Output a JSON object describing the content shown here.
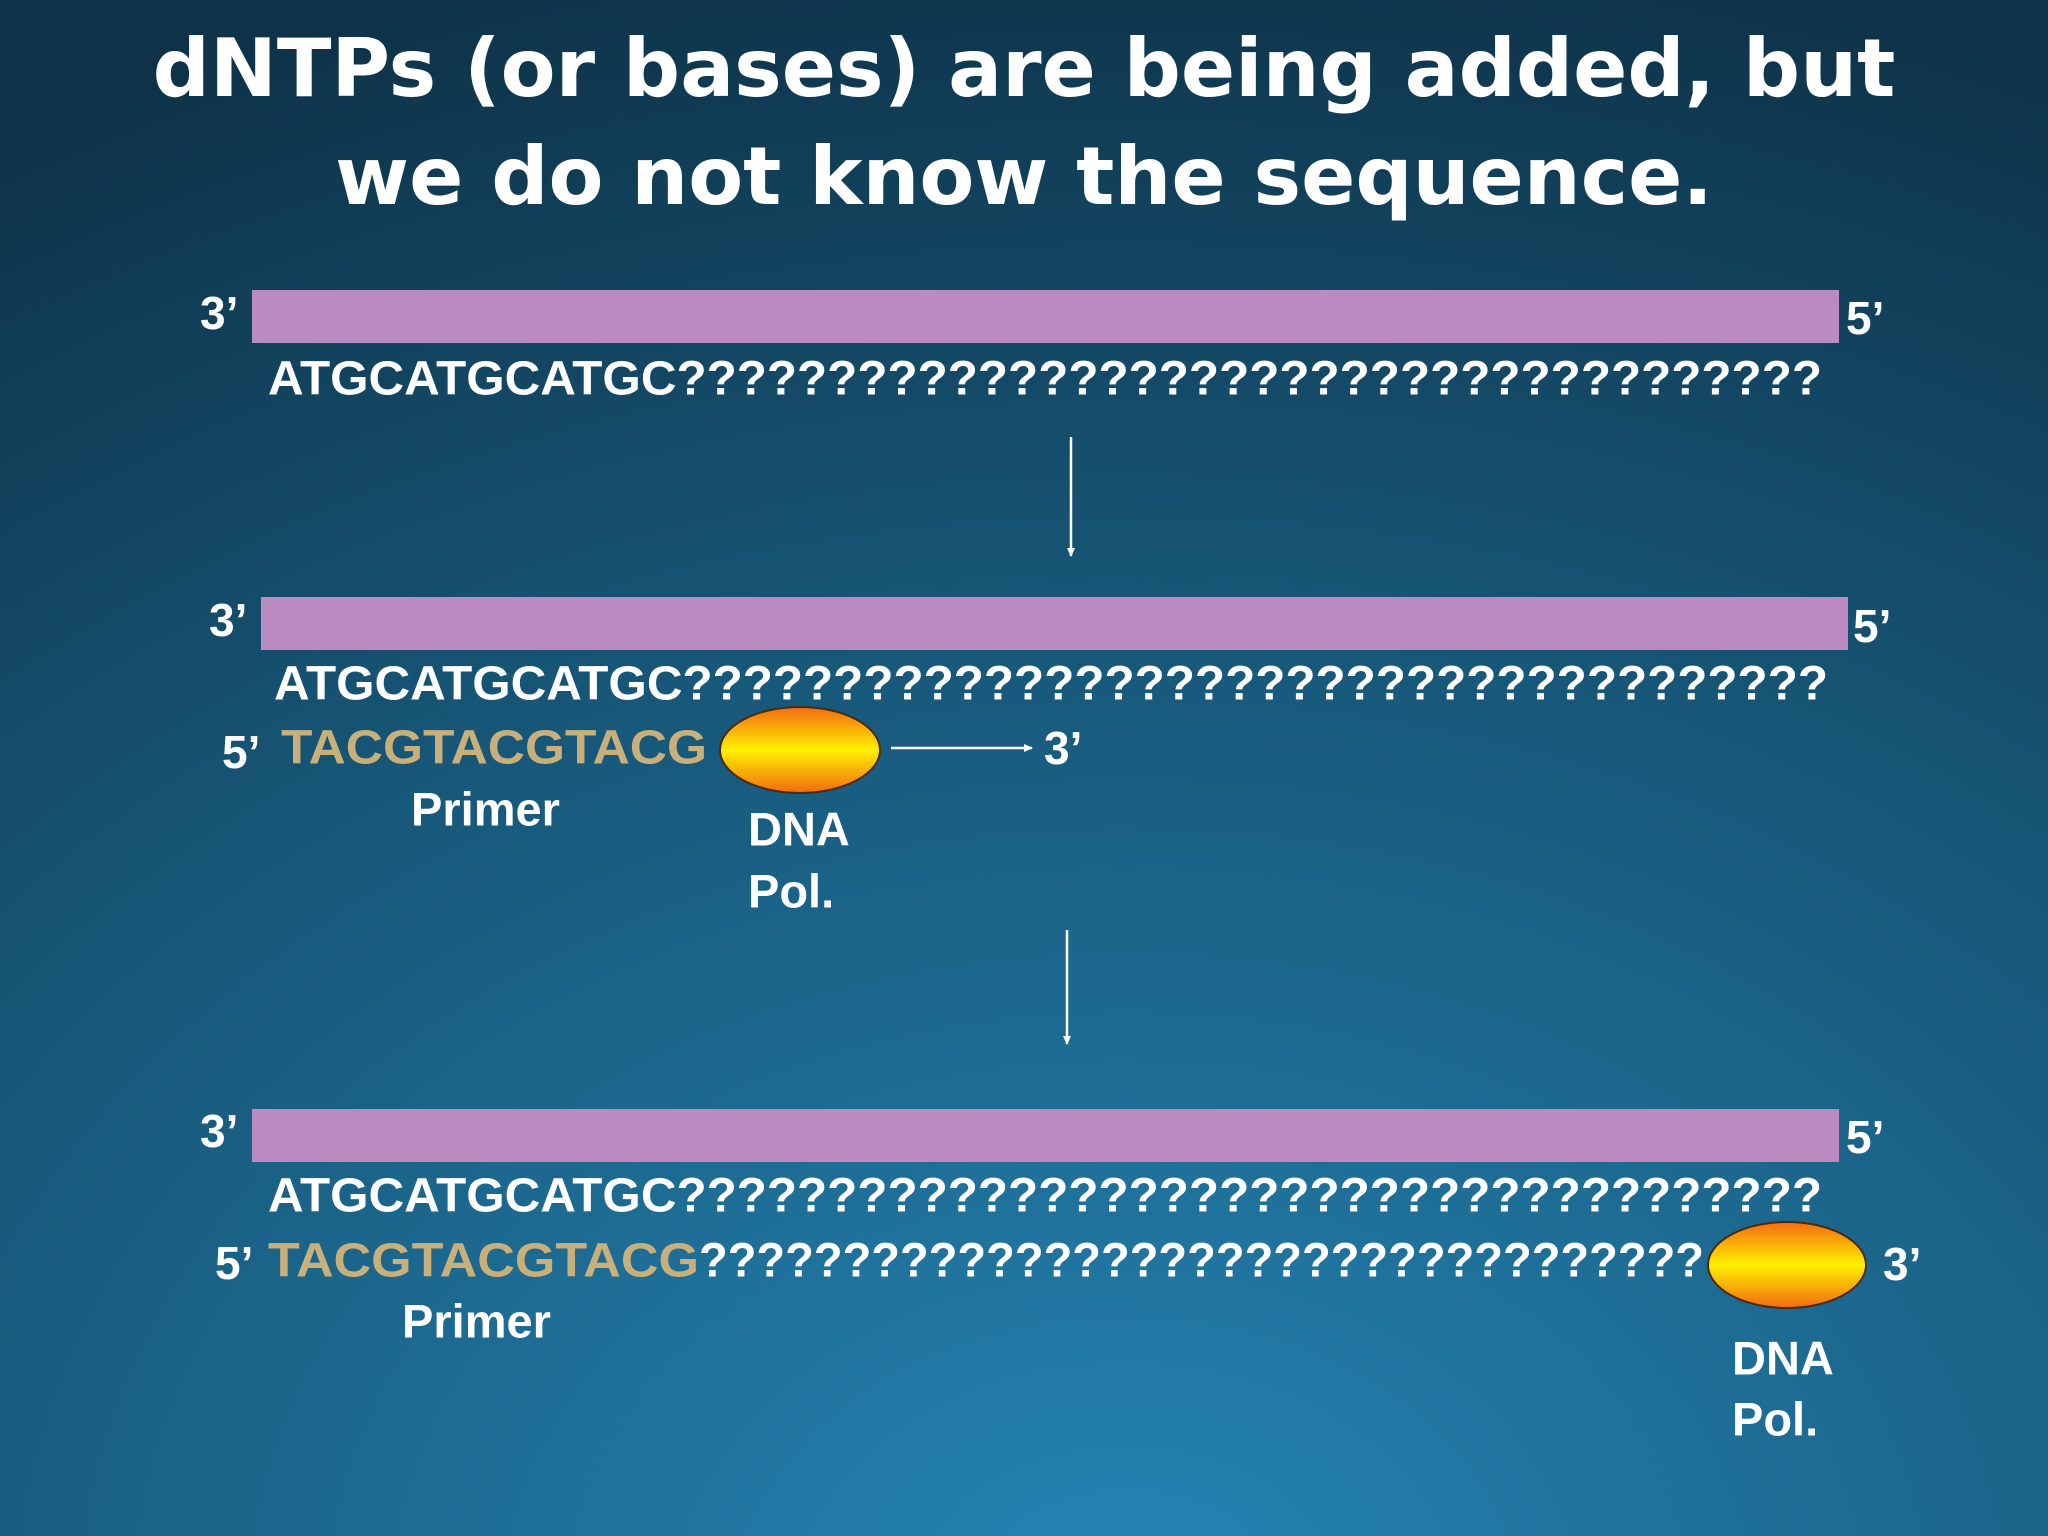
{
  "title": [
    "dNTPs (or bases) are being added, but",
    "we do not know the sequence."
  ],
  "panels": [
    {
      "left_end": "3’",
      "right_end": "5’",
      "template": "ATGCATGCATGC??????????????????????????????????????"
    },
    {
      "left_end": "3’",
      "right_end": "5’",
      "template": "ATGCATGCATGC??????????????????????????????????????",
      "primer_end": "5’",
      "primer": "TACGTACGTACG",
      "new_end": "3’",
      "primer_label": "Primer",
      "polymerase": [
        "DNA",
        "Pol."
      ]
    },
    {
      "left_end": "3’",
      "right_end": "5’",
      "template": "ATGCATGCATGC??????????????????????????????????????",
      "primer_end": "5’",
      "primer": "TACGTACGTACG",
      "extension": "???????????????????????????????????",
      "new_end": "3’",
      "primer_label": "Primer",
      "polymerase": [
        "DNA",
        "Pol."
      ]
    }
  ]
}
